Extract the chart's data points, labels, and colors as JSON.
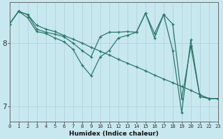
{
  "xlabel": "Humidex (Indice chaleur)",
  "bg_color": "#c8e8f0",
  "grid_color_major": "#b0cdd8",
  "grid_color_minor": "#b8d8e4",
  "line_color": "#2a7868",
  "xlim": [
    0,
    23
  ],
  "ylim": [
    6.75,
    8.65
  ],
  "yticks": [
    7,
    8
  ],
  "xticks": [
    0,
    1,
    2,
    3,
    4,
    5,
    6,
    7,
    8,
    9,
    10,
    11,
    12,
    13,
    14,
    15,
    16,
    17,
    18,
    19,
    20,
    21,
    22,
    23
  ],
  "line1_x": [
    0,
    1,
    2,
    3,
    4,
    5,
    6,
    7,
    8,
    9,
    10,
    11,
    12,
    13,
    14,
    15,
    16,
    17,
    18,
    19,
    20,
    21,
    22,
    23
  ],
  "line1_y": [
    8.3,
    8.5,
    8.45,
    8.28,
    8.22,
    8.18,
    8.12,
    8.06,
    8.0,
    7.93,
    7.87,
    7.81,
    7.74,
    7.68,
    7.62,
    7.56,
    7.49,
    7.43,
    7.37,
    7.31,
    7.25,
    7.18,
    7.12,
    7.12
  ],
  "line2_x": [
    0,
    1,
    2,
    3,
    4,
    5,
    6,
    7,
    8,
    9,
    10,
    11,
    12,
    13,
    14,
    15,
    16,
    17,
    18,
    19,
    20,
    21,
    22,
    23
  ],
  "line2_y": [
    8.3,
    8.5,
    8.45,
    8.22,
    8.17,
    8.14,
    8.1,
    8.0,
    7.88,
    7.78,
    8.1,
    8.17,
    8.17,
    8.18,
    8.17,
    8.47,
    8.15,
    8.45,
    8.3,
    7.12,
    7.95,
    7.15,
    7.12,
    7.12
  ],
  "line3_x": [
    0,
    1,
    2,
    3,
    4,
    5,
    6,
    7,
    8,
    9,
    10,
    11,
    12,
    13,
    14,
    15,
    16,
    17,
    18,
    19,
    20,
    21,
    22,
    23
  ],
  "line3_y": [
    8.3,
    8.5,
    8.4,
    8.18,
    8.15,
    8.08,
    8.02,
    7.9,
    7.65,
    7.48,
    7.78,
    7.88,
    8.08,
    8.12,
    8.17,
    8.47,
    8.08,
    8.45,
    7.88,
    6.9,
    8.05,
    7.15,
    7.12,
    7.12
  ]
}
